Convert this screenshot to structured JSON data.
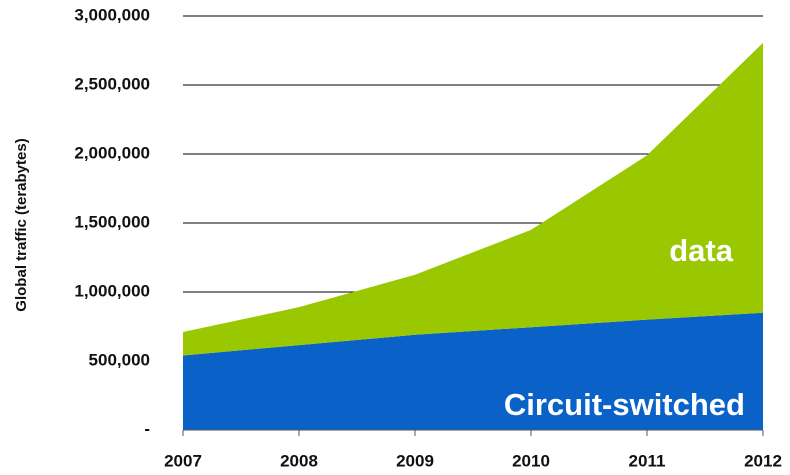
{
  "chart_data": {
    "type": "stacked_area",
    "y_label": "Global traffic (terabytes)",
    "categories": [
      "2007",
      "2008",
      "2009",
      "2010",
      "2011",
      "2012"
    ],
    "series": [
      {
        "name": "Circuit-switched",
        "color": "#0a62c8",
        "values": [
          540000,
          615000,
          690000,
          745000,
          800000,
          850000
        ]
      },
      {
        "name": "data",
        "color": "#99c800",
        "values": [
          170000,
          275000,
          435000,
          705000,
          1190000,
          1955000
        ]
      }
    ],
    "ylim": [
      0,
      3000000
    ],
    "yticks": [
      {
        "value": 0,
        "label": "-"
      },
      {
        "value": 500000,
        "label": "500,000"
      },
      {
        "value": 1000000,
        "label": "1,000,000"
      },
      {
        "value": 1500000,
        "label": "1,500,000"
      },
      {
        "value": 2000000,
        "label": "2,000,000"
      },
      {
        "value": 2500000,
        "label": "2,500,000"
      },
      {
        "value": 3000000,
        "label": "3,000,000"
      }
    ],
    "grid": true
  }
}
